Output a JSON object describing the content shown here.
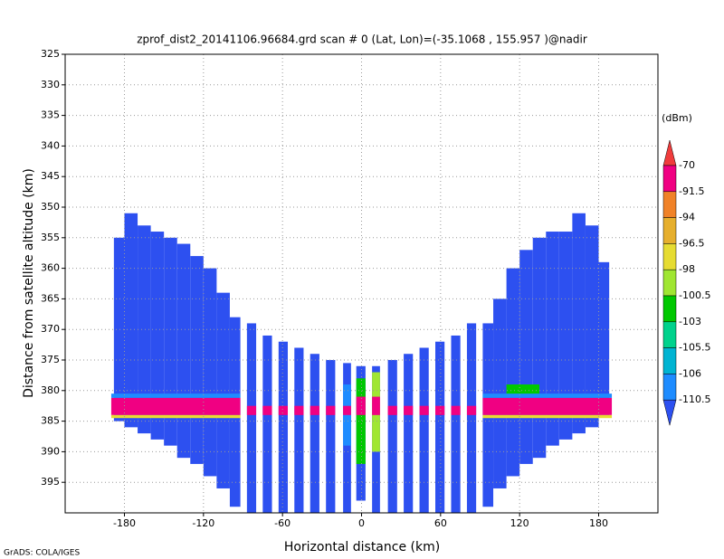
{
  "chart_data": {
    "type": "shaded",
    "title": "zprof_dist2_20141106.96684.grd   scan # 0   (Lat, Lon)=(-35.1068 , 155.957 )@nadir",
    "xlabel": "Horizontal distance (km)",
    "ylabel": "Distance from satellite altitude (km)",
    "credit": "GrADS: COLA/IGES",
    "colorbar_unit": "(dBm)",
    "xlim": [
      -225,
      225
    ],
    "xticks": [
      -180,
      -120,
      -60,
      0,
      60,
      120,
      180
    ],
    "ylim": [
      400,
      325
    ],
    "yticks": [
      325,
      330,
      335,
      340,
      345,
      350,
      355,
      360,
      365,
      370,
      375,
      380,
      385,
      390,
      395
    ],
    "grid": true,
    "levels": [
      -70,
      -91.5,
      -94,
      -96.5,
      -98,
      -100.5,
      -103,
      -105.5,
      -106,
      -110.5
    ],
    "colors": [
      "#f03c3c",
      "#f00082",
      "#f08228",
      "#e6af2d",
      "#e6dc32",
      "#a0e632",
      "#00c800",
      "#00d28c",
      "#00b4d2",
      "#1e8cff",
      "#2d50f0"
    ],
    "cells": [
      {
        "x0": -188,
        "x1": -180,
        "y0": 355,
        "y1": 385,
        "value": -115
      },
      {
        "x0": -180,
        "x1": -170,
        "y0": 351,
        "y1": 386,
        "value": -115
      },
      {
        "x0": -170,
        "x1": -160,
        "y0": 353,
        "y1": 387,
        "value": -115
      },
      {
        "x0": -160,
        "x1": -150,
        "y0": 354,
        "y1": 388,
        "value": -115
      },
      {
        "x0": -150,
        "x1": -140,
        "y0": 355,
        "y1": 389,
        "value": -115
      },
      {
        "x0": -140,
        "x1": -130,
        "y0": 356,
        "y1": 391,
        "value": -115
      },
      {
        "x0": -130,
        "x1": -120,
        "y0": 358,
        "y1": 392,
        "value": -115
      },
      {
        "x0": -120,
        "x1": -110,
        "y0": 360,
        "y1": 394,
        "value": -115
      },
      {
        "x0": -110,
        "x1": -100,
        "y0": 364,
        "y1": 396,
        "value": -115
      },
      {
        "x0": -100,
        "x1": -92,
        "y0": 368,
        "y1": 399,
        "value": -115
      },
      {
        "x0": -87,
        "x1": -80,
        "y0": 369,
        "y1": 400,
        "value": -115
      },
      {
        "x0": -75,
        "x1": -68,
        "y0": 371,
        "y1": 400,
        "value": -115
      },
      {
        "x0": -63,
        "x1": -56,
        "y0": 372,
        "y1": 400,
        "value": -115
      },
      {
        "x0": -51,
        "x1": -44,
        "y0": 373,
        "y1": 400,
        "value": -115
      },
      {
        "x0": -39,
        "x1": -32,
        "y0": 374,
        "y1": 400,
        "value": -115
      },
      {
        "x0": -27,
        "x1": -20,
        "y0": 375,
        "y1": 400,
        "value": -115
      },
      {
        "x0": -14,
        "x1": -8,
        "y0": 375.5,
        "y1": 400,
        "value": -115
      },
      {
        "x0": -4,
        "x1": 3,
        "y0": 376,
        "y1": 398,
        "value": -115
      },
      {
        "x0": 8,
        "x1": 14,
        "y0": 376,
        "y1": 400,
        "value": -115
      },
      {
        "x0": 20,
        "x1": 27,
        "y0": 375,
        "y1": 400,
        "value": -115
      },
      {
        "x0": 32,
        "x1": 39,
        "y0": 374,
        "y1": 400,
        "value": -115
      },
      {
        "x0": 44,
        "x1": 51,
        "y0": 373,
        "y1": 400,
        "value": -115
      },
      {
        "x0": 56,
        "x1": 63,
        "y0": 372,
        "y1": 400,
        "value": -115
      },
      {
        "x0": 68,
        "x1": 75,
        "y0": 371,
        "y1": 400,
        "value": -115
      },
      {
        "x0": 80,
        "x1": 87,
        "y0": 369,
        "y1": 400,
        "value": -115
      },
      {
        "x0": 92,
        "x1": 100,
        "y0": 369,
        "y1": 399,
        "value": -115
      },
      {
        "x0": 100,
        "x1": 110,
        "y0": 365,
        "y1": 396,
        "value": -115
      },
      {
        "x0": 110,
        "x1": 120,
        "y0": 360,
        "y1": 394,
        "value": -115
      },
      {
        "x0": 120,
        "x1": 130,
        "y0": 357,
        "y1": 392,
        "value": -115
      },
      {
        "x0": 130,
        "x1": 140,
        "y0": 355,
        "y1": 391,
        "value": -115
      },
      {
        "x0": 140,
        "x1": 150,
        "y0": 354,
        "y1": 389,
        "value": -115
      },
      {
        "x0": 150,
        "x1": 160,
        "y0": 354,
        "y1": 388,
        "value": -115
      },
      {
        "x0": 160,
        "x1": 170,
        "y0": 351,
        "y1": 387,
        "value": -115
      },
      {
        "x0": 170,
        "x1": 180,
        "y0": 353,
        "y1": 386,
        "value": -115
      },
      {
        "x0": 180,
        "x1": 188,
        "y0": 359,
        "y1": 384,
        "value": -115
      },
      {
        "x0": -14,
        "x1": -8,
        "y0": 379,
        "y1": 389,
        "value": -107
      },
      {
        "x0": -4,
        "x1": 3,
        "y0": 378,
        "y1": 392,
        "value": -102
      },
      {
        "x0": 8,
        "x1": 14,
        "y0": 377,
        "y1": 390,
        "value": -100
      },
      {
        "x0": 110,
        "x1": 135,
        "y0": 379,
        "y1": 381,
        "value": -101
      },
      {
        "x0": -190,
        "x1": -92,
        "y0": 380.5,
        "y1": 381.2,
        "value": -107
      },
      {
        "x0": 92,
        "x1": 190,
        "y0": 380.5,
        "y1": 381.2,
        "value": -107
      },
      {
        "x0": -190,
        "x1": -92,
        "y0": 381.2,
        "y1": 384,
        "value": -80
      },
      {
        "x0": 92,
        "x1": 190,
        "y0": 381.2,
        "y1": 384,
        "value": -80
      },
      {
        "x0": -190,
        "x1": -92,
        "y0": 384,
        "y1": 384.5,
        "value": -97
      },
      {
        "x0": 92,
        "x1": 190,
        "y0": 384,
        "y1": 384.5,
        "value": -97
      },
      {
        "x0": -87,
        "x1": -80,
        "y0": 382.5,
        "y1": 384,
        "value": -80
      },
      {
        "x0": -75,
        "x1": -68,
        "y0": 382.5,
        "y1": 384,
        "value": -80
      },
      {
        "x0": -63,
        "x1": -56,
        "y0": 382.5,
        "y1": 384,
        "value": -80
      },
      {
        "x0": -51,
        "x1": -44,
        "y0": 382.5,
        "y1": 384,
        "value": -80
      },
      {
        "x0": -39,
        "x1": -32,
        "y0": 382.5,
        "y1": 384,
        "value": -80
      },
      {
        "x0": -27,
        "x1": -20,
        "y0": 382.5,
        "y1": 384,
        "value": -80
      },
      {
        "x0": -14,
        "x1": -8,
        "y0": 382.5,
        "y1": 384,
        "value": -80
      },
      {
        "x0": -4,
        "x1": 3,
        "y0": 381,
        "y1": 384,
        "value": -80
      },
      {
        "x0": 8,
        "x1": 14,
        "y0": 381,
        "y1": 384,
        "value": -80
      },
      {
        "x0": 20,
        "x1": 27,
        "y0": 382.5,
        "y1": 384,
        "value": -80
      },
      {
        "x0": 32,
        "x1": 39,
        "y0": 382.5,
        "y1": 384,
        "value": -80
      },
      {
        "x0": 44,
        "x1": 51,
        "y0": 382.5,
        "y1": 384,
        "value": -80
      },
      {
        "x0": 56,
        "x1": 63,
        "y0": 382.5,
        "y1": 384,
        "value": -80
      },
      {
        "x0": 68,
        "x1": 75,
        "y0": 382.5,
        "y1": 384,
        "value": -80
      },
      {
        "x0": 80,
        "x1": 87,
        "y0": 382.5,
        "y1": 384,
        "value": -80
      }
    ]
  }
}
